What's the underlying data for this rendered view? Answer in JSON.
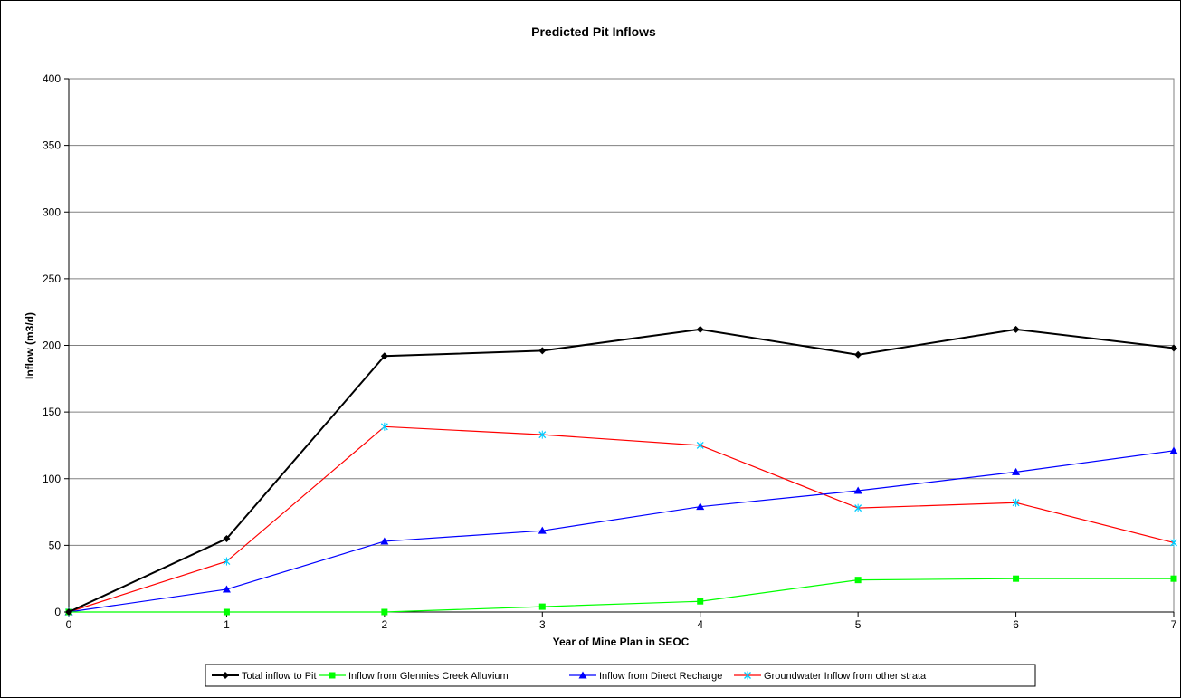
{
  "chart_data": {
    "type": "line",
    "title": "Predicted Pit Inflows",
    "xlabel": "Year of Mine Plan in SEOC",
    "ylabel": "Inflow (m3/d)",
    "x": [
      0,
      1,
      2,
      3,
      4,
      5,
      6,
      7
    ],
    "xlim": [
      0,
      7
    ],
    "ylim": [
      0,
      400
    ],
    "yticks": [
      0,
      50,
      100,
      150,
      200,
      250,
      300,
      350,
      400
    ],
    "grid": "horizontal",
    "legend_position": "bottom",
    "series": [
      {
        "name": "Total inflow to Pit",
        "color": "#000000",
        "marker": "diamond",
        "values": [
          0,
          55,
          192,
          196,
          212,
          193,
          212,
          198
        ]
      },
      {
        "name": "Inflow from Glennies Creek Alluvium",
        "color": "#00ff00",
        "marker": "square",
        "values": [
          0,
          0,
          0,
          4,
          8,
          24,
          25,
          25
        ]
      },
      {
        "name": "Inflow from Direct Recharge",
        "color": "#0000ff",
        "marker": "triangle",
        "values": [
          0,
          17,
          53,
          61,
          79,
          91,
          105,
          121
        ]
      },
      {
        "name": "Groundwater Inflow from other strata",
        "color": "#ff0000",
        "marker": "x",
        "marker_color": "#00ccff",
        "values": [
          0,
          38,
          139,
          133,
          125,
          78,
          82,
          52
        ]
      }
    ]
  }
}
